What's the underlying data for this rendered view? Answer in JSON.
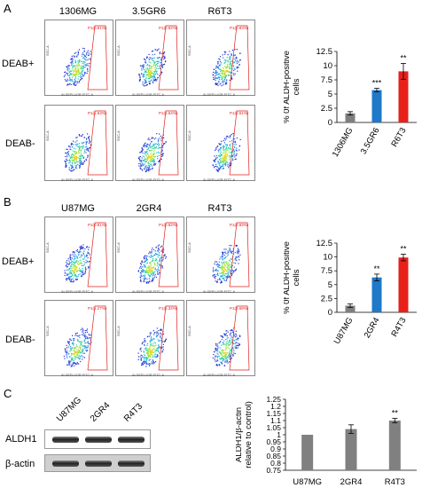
{
  "panels": {
    "A": {
      "letter": "A",
      "columns": [
        "1306MG",
        "3.5GR6",
        "R6T3"
      ],
      "rows": [
        "DEAB+",
        "DEAB-"
      ],
      "gate_labels": [
        [
          "P1(0.81%)",
          "P1(0.82%)",
          "P1(0.83%)"
        ],
        [
          "P1(1.63%)",
          "P1(5.64%)",
          "P1(8.51%)"
        ]
      ]
    },
    "B": {
      "letter": "B",
      "columns": [
        "U87MG",
        "2GR4",
        "R4T3"
      ],
      "rows": [
        "DEAB+",
        "DEAB-"
      ],
      "gate_labels": [
        [
          "P1(0.81%)",
          "P1(0.82%)",
          "P1(0.83%)"
        ],
        [
          "P1(1.27%)",
          "P1(6.34%)",
          "P1(9.68%)"
        ]
      ]
    },
    "C": {
      "letter": "C",
      "lanes": [
        "U87MG",
        "2GR4",
        "R4T3"
      ],
      "blots": [
        "ALDH1",
        "β-actin"
      ]
    }
  },
  "axis_text": {
    "x": "ALDEFLUOR FITC-A",
    "y": "SSC-A"
  },
  "chart_data": [
    {
      "type": "bar",
      "categories": [
        "1306MG",
        "3.5GR6",
        "R6T3"
      ],
      "values": [
        1.6,
        5.7,
        9.0
      ],
      "errors": [
        0.3,
        0.3,
        1.4
      ],
      "annotations": [
        "",
        "***",
        "**"
      ],
      "colors": [
        "#7f7f7f",
        "#1f78c8",
        "#e8201a"
      ],
      "ylabel": "% 0f ALDH-positive\ncells",
      "ylim": [
        0,
        12.5
      ],
      "yticks": [
        "0",
        "2.5",
        "5",
        "7.5",
        "10",
        "12.5"
      ]
    },
    {
      "type": "bar",
      "categories": [
        "U87MG",
        "2GR4",
        "R4T3"
      ],
      "values": [
        1.2,
        6.3,
        9.9
      ],
      "errors": [
        0.3,
        0.6,
        0.6
      ],
      "annotations": [
        "",
        "**",
        "**"
      ],
      "colors": [
        "#7f7f7f",
        "#1f78c8",
        "#e8201a"
      ],
      "ylabel": "% 0f ALDH-positive\ncells",
      "ylim": [
        0,
        12.5
      ],
      "yticks": [
        "0",
        "2.5",
        "5",
        "7.5",
        "10",
        "12.5"
      ]
    },
    {
      "type": "bar",
      "categories": [
        "U87MG",
        "2GR4",
        "R4T3"
      ],
      "values": [
        1.0,
        1.04,
        1.1
      ],
      "errors": [
        0.0,
        0.03,
        0.015
      ],
      "annotations": [
        "",
        "",
        "**"
      ],
      "colors": [
        "#808080",
        "#808080",
        "#808080"
      ],
      "ylabel": "ALDH1/β-actin\nrelative to control)",
      "ylim": [
        0.75,
        1.25
      ],
      "yticks": [
        "0.75",
        "0.8",
        "0.85",
        "0.9",
        "0.95",
        "1",
        "1.05",
        "1.1",
        "1.15",
        "1.2",
        "1.25"
      ]
    }
  ]
}
